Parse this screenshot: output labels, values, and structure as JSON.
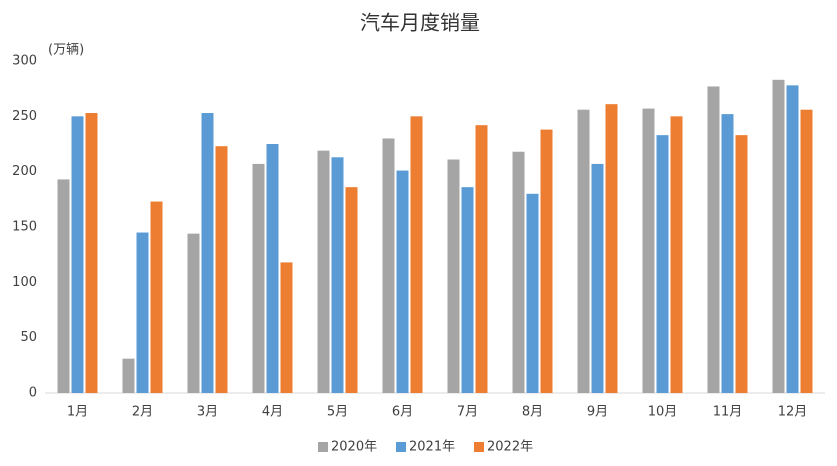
{
  "chart_data": {
    "type": "bar",
    "title": "汽车月度销量",
    "y_label": "(万辆)",
    "categories": [
      "1月",
      "2月",
      "3月",
      "4月",
      "5月",
      "6月",
      "7月",
      "8月",
      "9月",
      "10月",
      "11月",
      "12月"
    ],
    "series": [
      {
        "name": "2020年",
        "color": "#a5a5a5",
        "values": [
          193,
          31,
          144,
          207,
          219,
          230,
          211,
          218,
          256,
          257,
          277,
          283
        ]
      },
      {
        "name": "2021年",
        "color": "#5b9bd5",
        "values": [
          250,
          145,
          253,
          225,
          213,
          201,
          186,
          180,
          207,
          233,
          252,
          278
        ]
      },
      {
        "name": "2022年",
        "color": "#ed7d31",
        "values": [
          253,
          173,
          223,
          118,
          186,
          250,
          242,
          238,
          261,
          250,
          233,
          256
        ]
      }
    ],
    "ylim": [
      0,
      300
    ],
    "yticks": [
      0,
      50,
      100,
      150,
      200,
      250,
      300
    ],
    "grid": false,
    "legend": "bottom"
  }
}
